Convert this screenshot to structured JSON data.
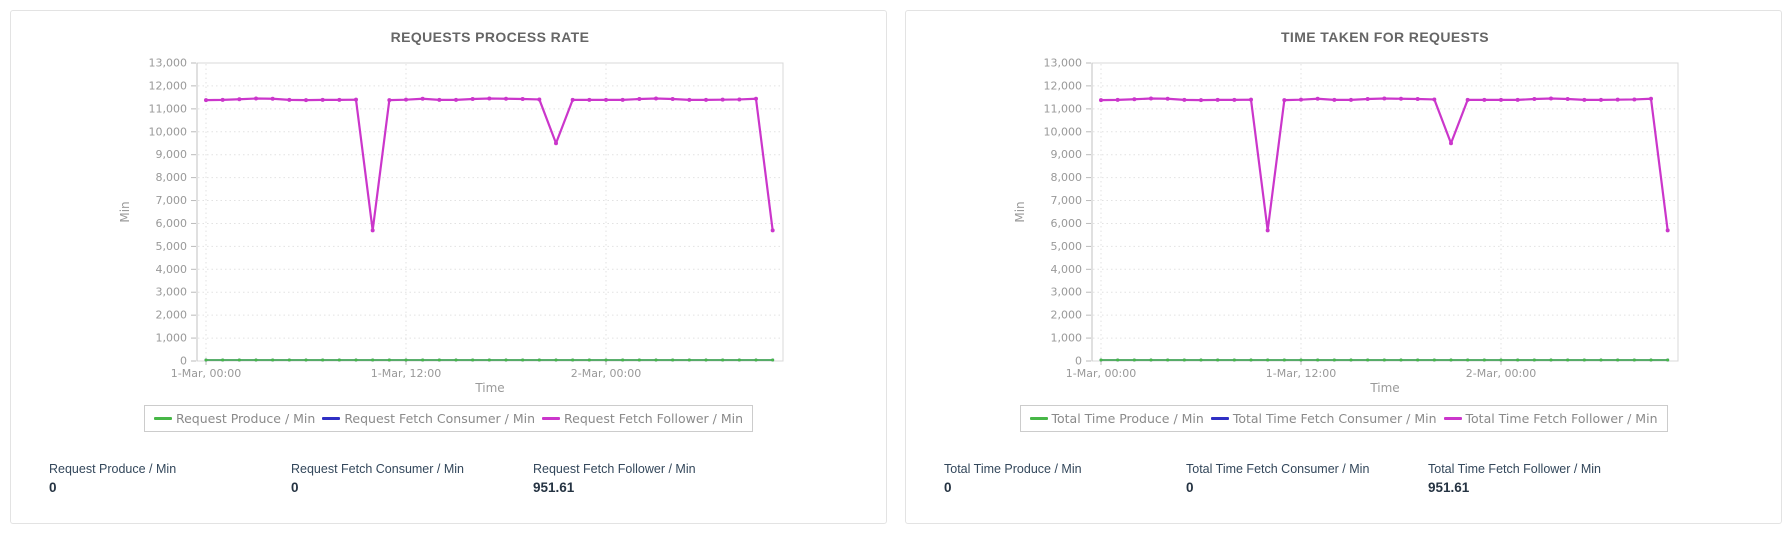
{
  "colors": {
    "produce_green": "#47b747",
    "consumer_blue": "#2f2fc4",
    "follower_magenta": "#cb36cb",
    "panel_border": "#e3e3e3",
    "plot_border": "#d8d8d8",
    "grid": "#e0e0e0",
    "tick_text": "#999999",
    "title_text": "#666666",
    "stat_text": "#33475b"
  },
  "panels": [
    {
      "title": "REQUESTS PROCESS RATE",
      "stats": [
        {
          "label": "Request Produce / Min",
          "value": "0"
        },
        {
          "label": "Request Fetch Consumer / Min",
          "value": "0"
        },
        {
          "label": "Request Fetch Follower / Min",
          "value": "951.61"
        }
      ]
    },
    {
      "title": "TIME TAKEN FOR REQUESTS",
      "stats": [
        {
          "label": "Total Time Produce / Min",
          "value": "0"
        },
        {
          "label": "Total Time Fetch Consumer / Min",
          "value": "0"
        },
        {
          "label": "Total Time Fetch Follower / Min",
          "value": "951.61"
        }
      ]
    }
  ],
  "chart_data": [
    {
      "type": "line",
      "title": "REQUESTS PROCESS RATE",
      "xlabel": "Time",
      "ylabel": "Min",
      "ylim": [
        0,
        13000
      ],
      "ytick_step": 1000,
      "ytick_labels": [
        "0",
        "1,000",
        "2,000",
        "3,000",
        "4,000",
        "5,000",
        "6,000",
        "7,000",
        "8,000",
        "9,000",
        "10,000",
        "11,000",
        "12,000",
        "13,000"
      ],
      "grid": "dotted",
      "legend_position": "bottom",
      "x_start": "1-Mar, 00:00",
      "x_point_interval_hours": 1,
      "x_hours": [
        0,
        1,
        2,
        3,
        4,
        5,
        6,
        7,
        8,
        9,
        10,
        11,
        12,
        13,
        14,
        15,
        16,
        17,
        18,
        19,
        20,
        21,
        22,
        23,
        24,
        25,
        26,
        27,
        28,
        29,
        30,
        31,
        32,
        33,
        34
      ],
      "xticks": [
        {
          "hour": 0,
          "label": "1-Mar, 00:00"
        },
        {
          "hour": 12,
          "label": "1-Mar, 12:00"
        },
        {
          "hour": 24,
          "label": "2-Mar, 00:00"
        }
      ],
      "series": [
        {
          "name": "Request Produce / Min",
          "color": "#47b747",
          "values": [
            0,
            0,
            0,
            0,
            0,
            0,
            0,
            0,
            0,
            0,
            0,
            0,
            0,
            0,
            0,
            0,
            0,
            0,
            0,
            0,
            0,
            0,
            0,
            0,
            0,
            0,
            0,
            0,
            0,
            0,
            0,
            0,
            0,
            0,
            0
          ]
        },
        {
          "name": "Request Fetch Consumer / Min",
          "color": "#2f2fc4",
          "values": [
            0,
            0,
            0,
            0,
            0,
            0,
            0,
            0,
            0,
            0,
            0,
            0,
            0,
            0,
            0,
            0,
            0,
            0,
            0,
            0,
            0,
            0,
            0,
            0,
            0,
            0,
            0,
            0,
            0,
            0,
            0,
            0,
            0,
            0,
            0
          ]
        },
        {
          "name": "Request Fetch Follower / Min",
          "color": "#cb36cb",
          "values": [
            11380,
            11390,
            11420,
            11450,
            11440,
            11390,
            11380,
            11390,
            11390,
            11400,
            5700,
            11380,
            11400,
            11440,
            11390,
            11390,
            11430,
            11450,
            11440,
            11430,
            11410,
            9500,
            11390,
            11390,
            11390,
            11390,
            11430,
            11450,
            11430,
            11390,
            11390,
            11400,
            11410,
            11440,
            5700
          ]
        }
      ]
    },
    {
      "type": "line",
      "title": "TIME TAKEN FOR REQUESTS",
      "xlabel": "Time",
      "ylabel": "Min",
      "ylim": [
        0,
        13000
      ],
      "ytick_step": 1000,
      "ytick_labels": [
        "0",
        "1,000",
        "2,000",
        "3,000",
        "4,000",
        "5,000",
        "6,000",
        "7,000",
        "8,000",
        "9,000",
        "10,000",
        "11,000",
        "12,000",
        "13,000"
      ],
      "grid": "dotted",
      "legend_position": "bottom",
      "x_start": "1-Mar, 00:00",
      "x_point_interval_hours": 1,
      "x_hours": [
        0,
        1,
        2,
        3,
        4,
        5,
        6,
        7,
        8,
        9,
        10,
        11,
        12,
        13,
        14,
        15,
        16,
        17,
        18,
        19,
        20,
        21,
        22,
        23,
        24,
        25,
        26,
        27,
        28,
        29,
        30,
        31,
        32,
        33,
        34
      ],
      "xticks": [
        {
          "hour": 0,
          "label": "1-Mar, 00:00"
        },
        {
          "hour": 12,
          "label": "1-Mar, 12:00"
        },
        {
          "hour": 24,
          "label": "2-Mar, 00:00"
        }
      ],
      "series": [
        {
          "name": "Total Time Produce / Min",
          "color": "#47b747",
          "values": [
            0,
            0,
            0,
            0,
            0,
            0,
            0,
            0,
            0,
            0,
            0,
            0,
            0,
            0,
            0,
            0,
            0,
            0,
            0,
            0,
            0,
            0,
            0,
            0,
            0,
            0,
            0,
            0,
            0,
            0,
            0,
            0,
            0,
            0,
            0
          ]
        },
        {
          "name": "Total Time Fetch Consumer / Min",
          "color": "#2f2fc4",
          "values": [
            0,
            0,
            0,
            0,
            0,
            0,
            0,
            0,
            0,
            0,
            0,
            0,
            0,
            0,
            0,
            0,
            0,
            0,
            0,
            0,
            0,
            0,
            0,
            0,
            0,
            0,
            0,
            0,
            0,
            0,
            0,
            0,
            0,
            0,
            0
          ]
        },
        {
          "name": "Total Time Fetch Follower / Min",
          "color": "#cb36cb",
          "values": [
            11380,
            11390,
            11420,
            11450,
            11440,
            11390,
            11380,
            11390,
            11390,
            11400,
            5700,
            11380,
            11400,
            11440,
            11390,
            11390,
            11430,
            11450,
            11440,
            11430,
            11410,
            9500,
            11390,
            11390,
            11390,
            11390,
            11430,
            11450,
            11430,
            11390,
            11390,
            11400,
            11410,
            11440,
            5700
          ]
        }
      ]
    }
  ]
}
